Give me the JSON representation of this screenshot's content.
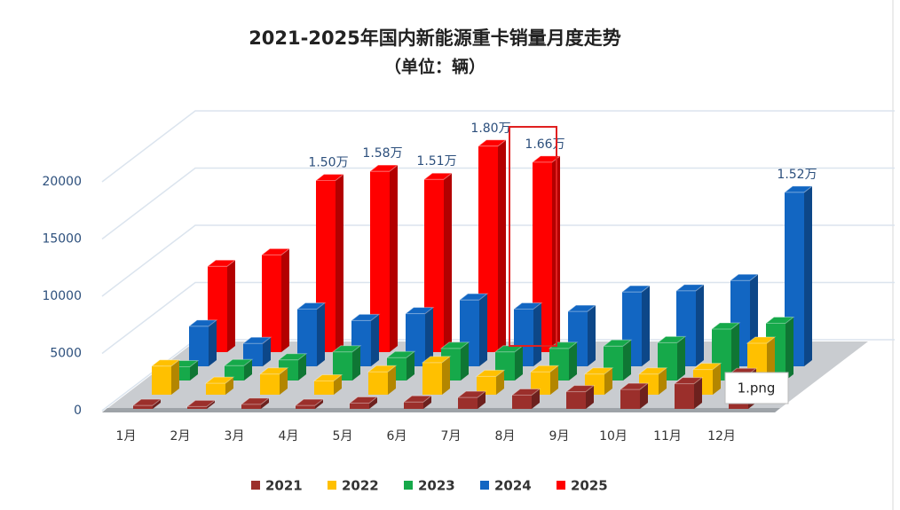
{
  "chart_data": {
    "type": "bar3d",
    "title": "2021-2025年国内新能源重卡销量月度走势",
    "subtitle": "（单位：辆）",
    "categories": [
      "1月",
      "2月",
      "3月",
      "4月",
      "5月",
      "6月",
      "7月",
      "8月",
      "9月",
      "10月",
      "11月",
      "12月"
    ],
    "series": [
      {
        "name": "2021",
        "color": "#9b2f2b",
        "values": [
          300,
          200,
          400,
          300,
          500,
          600,
          1000,
          1200,
          1500,
          1700,
          2200,
          3000
        ]
      },
      {
        "name": "2022",
        "color": "#ffc000",
        "values": [
          2500,
          1000,
          1800,
          1200,
          2000,
          2800,
          1600,
          2000,
          1800,
          1800,
          2200,
          4500
        ]
      },
      {
        "name": "2023",
        "color": "#16a94a",
        "values": [
          1200,
          1300,
          1800,
          2500,
          2000,
          2800,
          2500,
          2800,
          3000,
          3300,
          4500,
          5000
        ]
      },
      {
        "name": "2024",
        "color": "#1266c2",
        "values": [
          3500,
          2000,
          5000,
          4000,
          4600,
          5800,
          5000,
          4800,
          6500,
          6600,
          7500,
          15200
        ],
        "value_labels": [
          null,
          null,
          null,
          null,
          null,
          null,
          null,
          null,
          null,
          null,
          null,
          "1.52万"
        ]
      },
      {
        "name": "2025",
        "color": "#ff0000",
        "values": [
          7500,
          8500,
          15000,
          15800,
          15100,
          18000,
          16600,
          null,
          null,
          null,
          null,
          null
        ],
        "value_labels": [
          null,
          null,
          "1.50万",
          "1.58万",
          "1.51万",
          "1.80万",
          "1.66万",
          null,
          null,
          null,
          null,
          null
        ]
      }
    ],
    "ylim": [
      0,
      20000
    ],
    "yticks": [
      0,
      5000,
      10000,
      15000,
      20000
    ],
    "grid": true,
    "legend": "bottom",
    "tooltip": "1.png"
  }
}
